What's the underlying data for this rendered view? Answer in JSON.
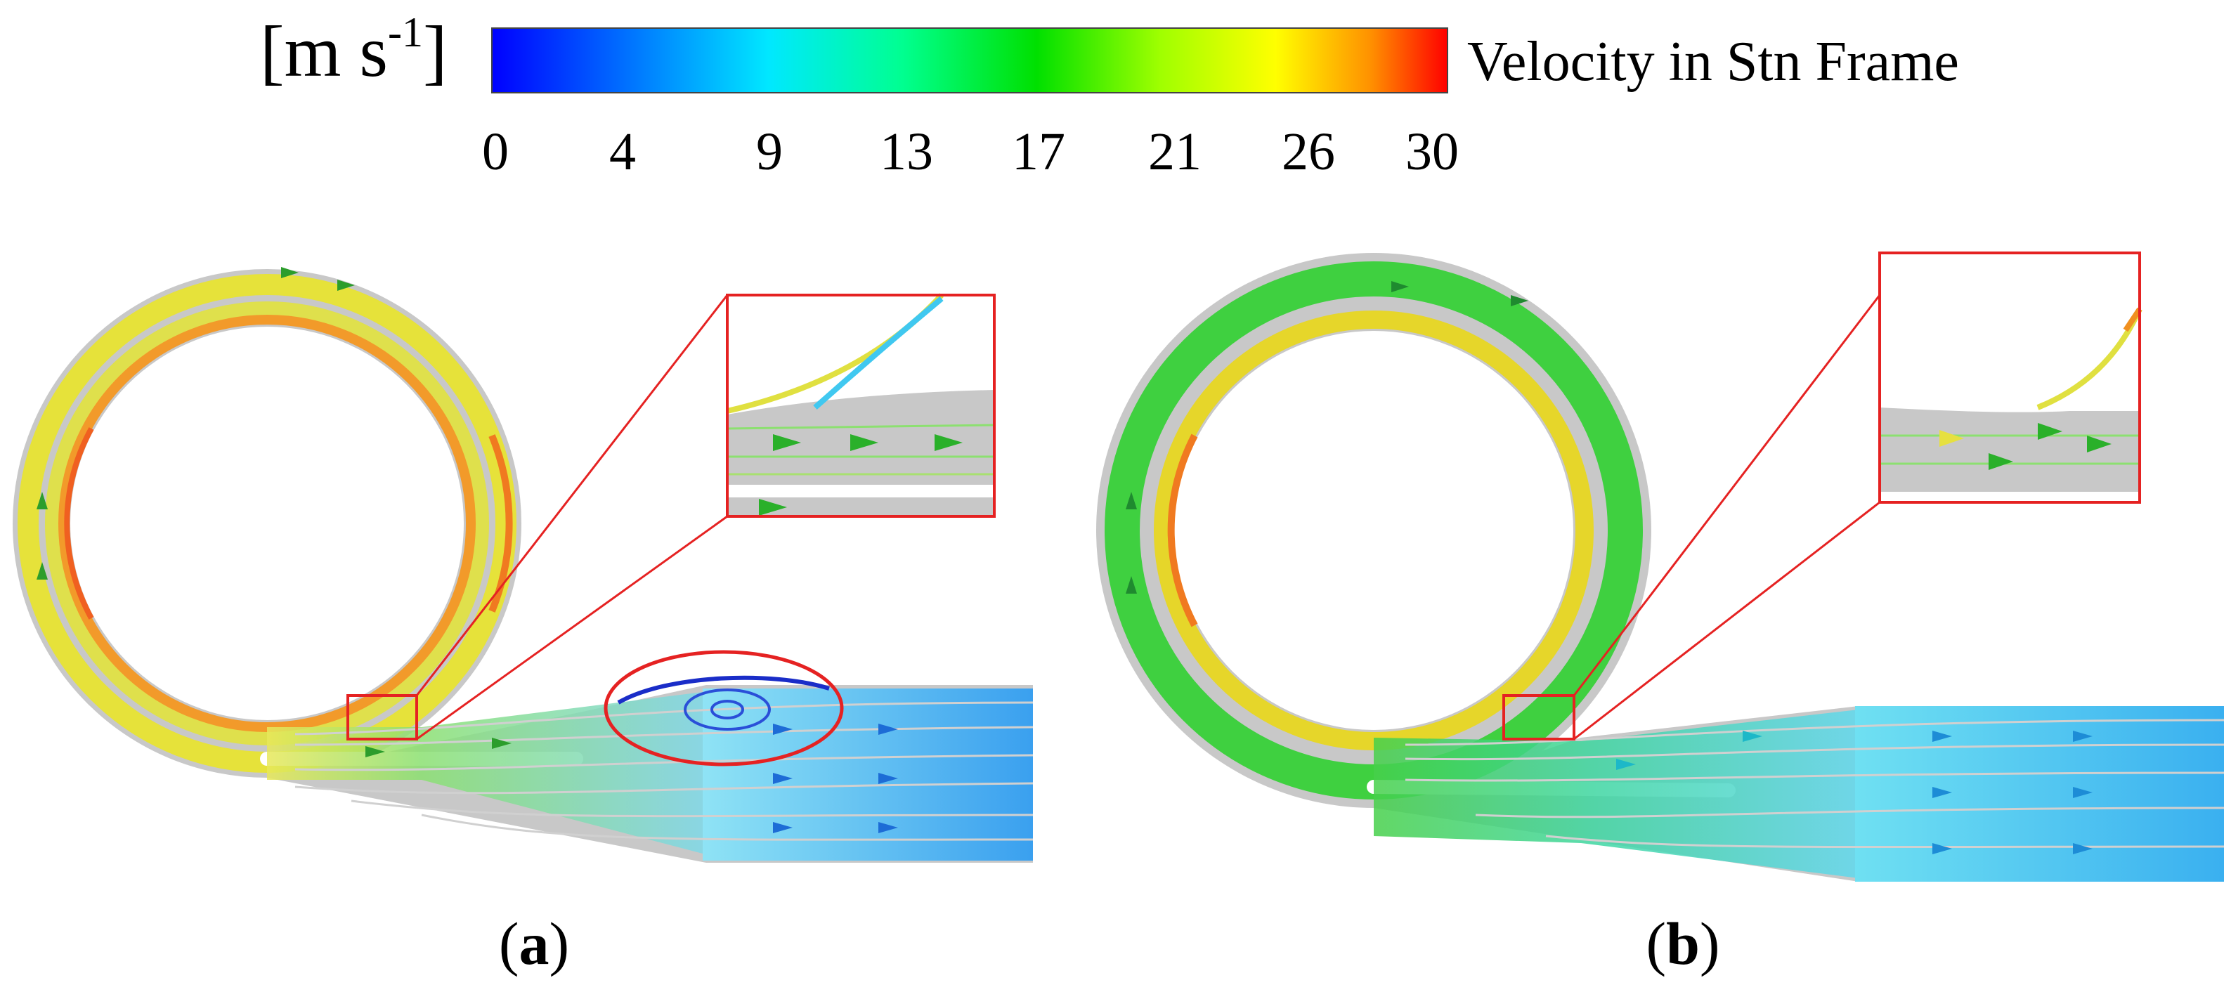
{
  "colorbar": {
    "unit_open": "[m s",
    "unit_exp": "-1",
    "unit_close": "]",
    "title": "Velocity in Stn Frame",
    "range": [
      0,
      30
    ],
    "ticks": [
      "0",
      "4",
      "9",
      "13",
      "17",
      "21",
      "26",
      "30"
    ],
    "colormap": [
      "#0000ff",
      "#0070ff",
      "#00e8ff",
      "#00ff90",
      "#00e000",
      "#a0ff00",
      "#ffff00",
      "#ff9000",
      "#ff0000"
    ]
  },
  "panels": [
    {
      "caption_open": "(",
      "caption_letter": "a",
      "caption_close": ")"
    },
    {
      "caption_open": "(",
      "caption_letter": "b",
      "caption_close": ")"
    }
  ],
  "colors": {
    "highlight": "#e52222",
    "wall": "#c8c8c8"
  }
}
